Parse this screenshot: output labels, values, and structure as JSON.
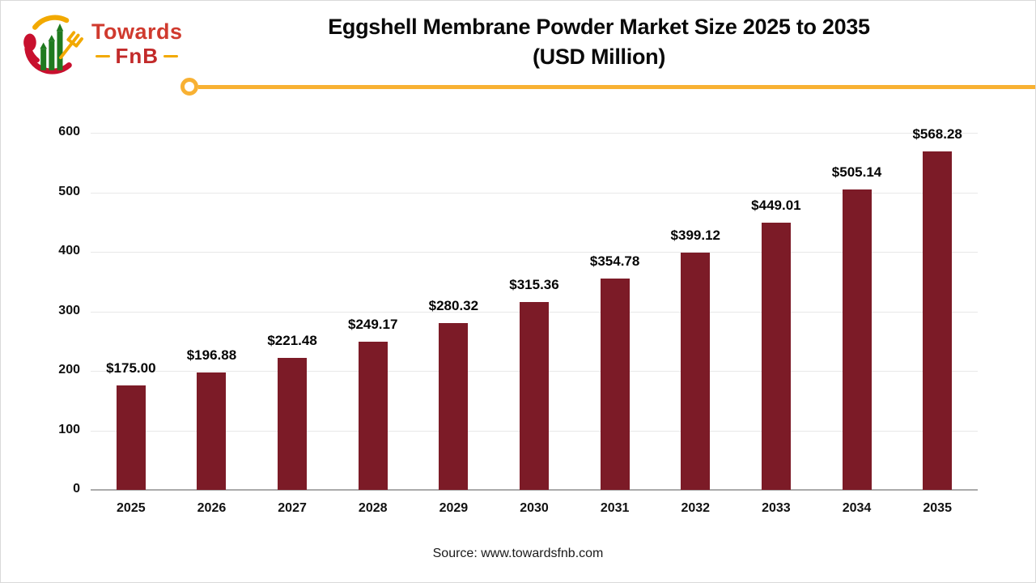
{
  "logo": {
    "brand_top": "Towards",
    "brand_bottom": "FnB"
  },
  "header": {
    "title_line1": "Eggshell Membrane Powder Market Size 2025 to 2035",
    "title_line2": "(USD Million)"
  },
  "chart_data": {
    "type": "bar",
    "title": "Eggshell Membrane Powder Market Size 2025 to 2035 (USD Million)",
    "categories": [
      "2025",
      "2026",
      "2027",
      "2028",
      "2029",
      "2030",
      "2031",
      "2032",
      "2033",
      "2034",
      "2035"
    ],
    "values": [
      175.0,
      196.88,
      221.48,
      249.17,
      280.32,
      315.36,
      354.78,
      399.12,
      449.01,
      505.14,
      568.28
    ],
    "value_labels": [
      "$175.00",
      "$196.88",
      "$221.48",
      "$249.17",
      "$280.32",
      "$315.36",
      "$354.78",
      "$399.12",
      "$449.01",
      "$505.14",
      "$568.28"
    ],
    "xlabel": "",
    "ylabel": "",
    "ylim": [
      0,
      600
    ],
    "yticks": [
      0,
      100,
      200,
      300,
      400,
      500,
      600
    ],
    "grid": true,
    "legend_position": "none",
    "bar_color": "#7c1b27"
  },
  "footer": {
    "source": "Source: www.towardsfnb.com"
  },
  "colors": {
    "bar": "#7c1b27",
    "accent_line": "#f8b133",
    "logo_red": "#c8102e",
    "logo_green": "#1f7a1f",
    "logo_yellow": "#f2a900",
    "gridline": "#e8e8e8",
    "axis": "#ababab"
  }
}
